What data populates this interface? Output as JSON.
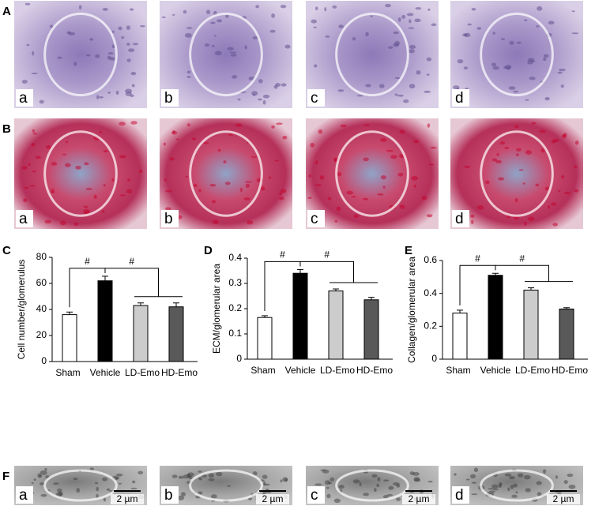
{
  "panel_labels": [
    "A",
    "B",
    "C",
    "D",
    "E",
    "F"
  ],
  "image_labels": [
    "a",
    "b",
    "c",
    "d"
  ],
  "scale_bar": "2 µm",
  "chart_data": [
    {
      "type": "bar",
      "ylabel": "Cell number/glomerulus",
      "categories": [
        "Sham",
        "Vehicle",
        "LD-Emo",
        "HD-Emo"
      ],
      "values": [
        36,
        62,
        43,
        42
      ],
      "errors": [
        2,
        3.5,
        2,
        3
      ],
      "colors": [
        "#ffffff",
        "#000000",
        "#cccccc",
        "#595959"
      ],
      "ylim": [
        0,
        80
      ],
      "yticks": [
        0,
        20,
        40,
        60,
        80
      ],
      "annotations": [
        "#",
        "#"
      ]
    },
    {
      "type": "bar",
      "ylabel": "ECM/glomerular area",
      "categories": [
        "Sham",
        "Vehicle",
        "LD-Emo",
        "HD-Emo"
      ],
      "values": [
        0.165,
        0.34,
        0.27,
        0.235
      ],
      "errors": [
        0.007,
        0.015,
        0.008,
        0.01
      ],
      "colors": [
        "#ffffff",
        "#000000",
        "#cccccc",
        "#595959"
      ],
      "ylim": [
        0,
        0.4
      ],
      "yticks": [
        0,
        0.1,
        0.2,
        0.3,
        0.4
      ],
      "annotations": [
        "#",
        "#"
      ]
    },
    {
      "type": "bar",
      "ylabel": "Collagen/glomerular area",
      "categories": [
        "Sham",
        "Vehicle",
        "LD-Emo",
        "HD-Emo"
      ],
      "values": [
        0.28,
        0.51,
        0.42,
        0.305
      ],
      "errors": [
        0.018,
        0.012,
        0.014,
        0.008
      ],
      "colors": [
        "#ffffff",
        "#000000",
        "#cccccc",
        "#595959"
      ],
      "ylim": [
        0,
        0.6
      ],
      "yticks": [
        0,
        0.2,
        0.4,
        0.6
      ],
      "annotations": [
        "#",
        "#"
      ]
    }
  ]
}
